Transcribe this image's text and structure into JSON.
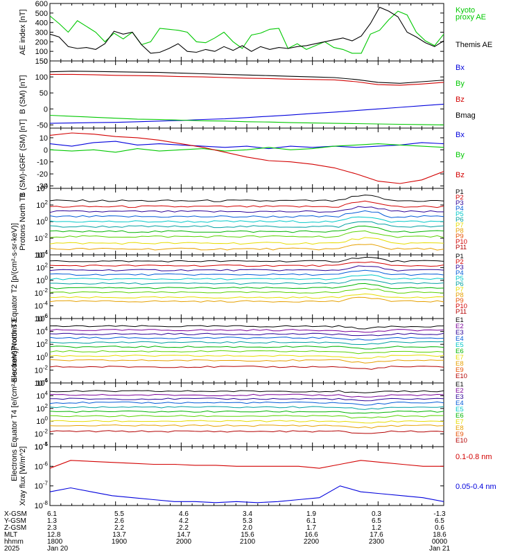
{
  "colors": {
    "black": "#000000",
    "green": "#00c800",
    "red": "#d20000",
    "blue": "#0000dc",
    "purple": "#7a0099",
    "darkblue": "#2a0096",
    "p4": "#005ad7",
    "teal": "#00a0a0",
    "cyan": "#00c8c8",
    "g1": "#00b400",
    "g2": "#5ad200",
    "yellow": "#e6dc00",
    "orange": "#e6a000",
    "orangered": "#e65000",
    "darkred": "#b40000"
  },
  "chart_data": [
    {
      "type": "line",
      "ylabel": "AE index [nT]",
      "ylim": [
        0,
        600
      ],
      "yticks": [
        "0",
        "100",
        "200",
        "300",
        "400",
        "500",
        "600"
      ],
      "series": [
        {
          "name": "Kyoto proxy AE",
          "color": "green",
          "y": [
            470,
            390,
            300,
            420,
            360,
            300,
            200,
            290,
            230,
            300,
            170,
            200,
            340,
            330,
            320,
            300,
            200,
            190,
            240,
            300,
            200,
            130,
            270,
            290,
            330,
            340,
            130,
            180,
            120,
            160,
            200,
            140,
            120,
            80,
            80,
            280,
            320,
            430,
            520,
            480,
            300,
            210,
            160,
            280
          ]
        },
        {
          "name": "Themis AE",
          "color": "black",
          "y": [
            280,
            250,
            150,
            130,
            140,
            120,
            180,
            310,
            280,
            300,
            170,
            80,
            90,
            130,
            180,
            100,
            90,
            120,
            100,
            150,
            110,
            160,
            100,
            150,
            120,
            140,
            130,
            150,
            160,
            180,
            200,
            220,
            240,
            210,
            260,
            390,
            560,
            520,
            460,
            300,
            250,
            190,
            150,
            210
          ]
        }
      ],
      "label_lines": [
        [
          {
            "text": "Kyoto",
            "color": "green"
          }
        ],
        [
          {
            "text": "proxy AE",
            "color": "green"
          }
        ],
        [
          {
            "text": "Themis AE",
            "color": "black"
          }
        ]
      ]
    },
    {
      "type": "line",
      "ylabel": "B (SM) [nT]",
      "ylim": [
        -60,
        150
      ],
      "yticks": [
        "-50",
        "0",
        "50",
        "100",
        "150"
      ],
      "series": [
        {
          "name": "Bx",
          "color": "blue",
          "y": [
            -45,
            -44,
            -43,
            -42,
            -40,
            -38,
            -36,
            -33,
            -31,
            -27,
            -23,
            -19,
            -14,
            -10,
            -5,
            0,
            5,
            10,
            15
          ]
        },
        {
          "name": "By",
          "color": "green",
          "y": [
            -20,
            -23,
            -26,
            -29,
            -32,
            -33,
            -35,
            -37,
            -38,
            -40,
            -41,
            -43,
            -44,
            -45,
            -46,
            -47,
            -48,
            -49,
            -50
          ]
        },
        {
          "name": "Bz",
          "color": "red",
          "y": [
            108,
            108,
            107,
            105,
            104,
            103,
            101,
            100,
            98,
            96,
            95,
            93,
            92,
            91,
            85,
            76,
            74,
            78,
            83
          ]
        },
        {
          "name": "Bmag",
          "color": "black",
          "y": [
            116,
            118,
            117,
            116,
            115,
            114,
            112,
            110,
            108,
            106,
            104,
            102,
            100,
            98,
            92,
            83,
            80,
            85,
            90
          ]
        }
      ],
      "label_lines": [
        [
          {
            "text": "Bx",
            "color": "blue"
          }
        ],
        [
          {
            "text": "By",
            "color": "green"
          }
        ],
        [
          {
            "text": "Bz",
            "color": "red"
          }
        ],
        [
          {
            "text": "Bmag",
            "color": "black"
          }
        ]
      ]
    },
    {
      "type": "line",
      "ylabel": "B (SM)-IGRF (SM) [nT]",
      "ylim": [
        -32,
        18
      ],
      "yticks": [
        "-30",
        "-20",
        "-10",
        "0",
        "10"
      ],
      "series": [
        {
          "name": "Bx",
          "color": "blue",
          "y": [
            5,
            3,
            6,
            7,
            4,
            5,
            4,
            3,
            2,
            3,
            1,
            3,
            2,
            3,
            2,
            3,
            4,
            6,
            5
          ]
        },
        {
          "name": "By",
          "color": "green",
          "y": [
            0,
            -1,
            0,
            -2,
            1,
            -1,
            0,
            1,
            -1,
            0,
            2,
            0,
            1,
            3,
            4,
            5,
            4,
            3,
            2
          ]
        },
        {
          "name": "Bz",
          "color": "red",
          "y": [
            12,
            14,
            13,
            11,
            10,
            8,
            5,
            2,
            -2,
            -6,
            -9,
            -10,
            -12,
            -15,
            -20,
            -26,
            -28,
            -25,
            -18
          ]
        }
      ],
      "label_lines": [
        [
          {
            "text": "Bx",
            "color": "blue"
          }
        ],
        [
          {
            "text": "By",
            "color": "green"
          }
        ],
        [
          {
            "text": "Bz",
            "color": "red"
          }
        ]
      ]
    },
    {
      "type": "line",
      "ylabel": "Protons North T1",
      "log_scale": true,
      "ylim_exp": [
        -4,
        4
      ],
      "yticks": [
        "10^-4",
        "10^-2",
        "10^0",
        "10^2",
        "10^4"
      ],
      "levels_exp": [
        2.5,
        1.8,
        1.2,
        0.6,
        0.0,
        -0.6,
        -1.2,
        -1.8,
        -2.6,
        -3.3
      ],
      "channel_colors": [
        "black",
        "red",
        "darkblue",
        "p4",
        "cyan",
        "teal",
        "g1",
        "g2",
        "yellow",
        "orange"
      ],
      "label_lines": [
        [
          {
            "text": "P1",
            "color": "black"
          }
        ],
        [
          {
            "text": "P2",
            "color": "red"
          }
        ],
        [
          {
            "text": "P3",
            "color": "darkblue"
          }
        ],
        [
          {
            "text": "P4",
            "color": "p4"
          }
        ],
        [
          {
            "text": "P5",
            "color": "cyan"
          }
        ],
        [
          {
            "text": "P6",
            "color": "teal"
          }
        ],
        [
          {
            "text": "P7",
            "color": "yellow"
          }
        ],
        [
          {
            "text": "P8",
            "color": "orange"
          }
        ],
        [
          {
            "text": "P9",
            "color": "orangered"
          }
        ],
        [
          {
            "text": "P10",
            "color": "red"
          }
        ],
        [
          {
            "text": "P11",
            "color": "darkred"
          }
        ]
      ]
    },
    {
      "type": "line",
      "ylabel": "Protons Equator T2 [p/(cm²-s-sr-keV)]",
      "log_scale": true,
      "ylim_exp": [
        -6,
        4
      ],
      "yticks": [
        "10^-6",
        "10^-4",
        "10^-2",
        "10^0",
        "10^2",
        "10^4"
      ],
      "levels_exp": [
        3.0,
        2.3,
        1.6,
        0.9,
        0.2,
        -0.5,
        -1.2,
        -1.9,
        -2.7,
        -3.3
      ],
      "channel_colors": [
        "black",
        "red",
        "darkblue",
        "p4",
        "cyan",
        "teal",
        "g1",
        "g2",
        "yellow",
        "orange"
      ],
      "label_lines": [
        [
          {
            "text": "P1",
            "color": "black"
          }
        ],
        [
          {
            "text": "P2",
            "color": "red"
          }
        ],
        [
          {
            "text": "P3",
            "color": "darkblue"
          }
        ],
        [
          {
            "text": "P4",
            "color": "p4"
          }
        ],
        [
          {
            "text": "P5",
            "color": "cyan"
          }
        ],
        [
          {
            "text": "P6",
            "color": "teal"
          }
        ],
        [
          {
            "text": "P7",
            "color": "yellow"
          }
        ],
        [
          {
            "text": "P8",
            "color": "orange"
          }
        ],
        [
          {
            "text": "P9",
            "color": "orangered"
          }
        ],
        [
          {
            "text": "P10",
            "color": "red"
          }
        ],
        [
          {
            "text": "P11",
            "color": "darkred"
          }
        ]
      ]
    },
    {
      "type": "line",
      "ylabel": "Electrons North T3",
      "log_scale": true,
      "ylim_exp": [
        -4,
        6
      ],
      "yticks": [
        "10^-4",
        "10^-2",
        "10^0",
        "10^2",
        "10^4",
        "10^6"
      ],
      "levels_exp": [
        4.8,
        4.2,
        3.6,
        3.0,
        2.3,
        1.6,
        0.9,
        0.2,
        -0.5,
        -1.5
      ],
      "channel_colors": [
        "black",
        "purple",
        "darkblue",
        "p4",
        "teal",
        "g1",
        "g2",
        "yellow",
        "orange",
        "darkred"
      ],
      "label_lines": [
        [
          {
            "text": "E1",
            "color": "black"
          }
        ],
        [
          {
            "text": "E2",
            "color": "purple"
          }
        ],
        [
          {
            "text": "E3",
            "color": "darkblue"
          }
        ],
        [
          {
            "text": "E4",
            "color": "p4"
          }
        ],
        [
          {
            "text": "E5",
            "color": "cyan"
          }
        ],
        [
          {
            "text": "E6",
            "color": "g1"
          }
        ],
        [
          {
            "text": "E7",
            "color": "yellow"
          }
        ],
        [
          {
            "text": "E8",
            "color": "orange"
          }
        ],
        [
          {
            "text": "E9",
            "color": "orangered"
          }
        ],
        [
          {
            "text": "E10",
            "color": "darkred"
          }
        ]
      ]
    },
    {
      "type": "line",
      "ylabel": "Electrons Equator T4 [e/(cm²-s-sr-keV)]",
      "log_scale": true,
      "ylim_exp": [
        -4,
        6
      ],
      "yticks": [
        "10^-4",
        "10^-2",
        "10^0",
        "10^2",
        "10^4",
        "10^6"
      ],
      "levels_exp": [
        4.7,
        4.1,
        3.5,
        2.9,
        2.2,
        1.5,
        0.8,
        0.0,
        -0.7,
        -1.6
      ],
      "channel_colors": [
        "black",
        "purple",
        "darkblue",
        "p4",
        "teal",
        "g1",
        "g2",
        "yellow",
        "orange",
        "darkred"
      ],
      "label_lines": [
        [
          {
            "text": "E1",
            "color": "black"
          }
        ],
        [
          {
            "text": "E2",
            "color": "purple"
          }
        ],
        [
          {
            "text": "E3",
            "color": "darkblue"
          }
        ],
        [
          {
            "text": "E4",
            "color": "p4"
          }
        ],
        [
          {
            "text": "E5",
            "color": "cyan"
          }
        ],
        [
          {
            "text": "E6",
            "color": "g1"
          }
        ],
        [
          {
            "text": "E7",
            "color": "yellow"
          }
        ],
        [
          {
            "text": "E8",
            "color": "orange"
          }
        ],
        [
          {
            "text": "E9",
            "color": "orangered"
          }
        ],
        [
          {
            "text": "E10",
            "color": "darkred"
          }
        ]
      ]
    },
    {
      "type": "line",
      "ylabel": "Xray flux [W/m^2]",
      "log_scale": true,
      "ylim_exp": [
        -8,
        -5
      ],
      "yticks": [
        "10^-8",
        "10^-7",
        "10^-6",
        "10^-5"
      ],
      "series": [
        {
          "name": "0.1-0.8 nm",
          "color": "red",
          "y_exp": [
            -6.1,
            -5.7,
            -5.75,
            -5.8,
            -5.85,
            -5.9,
            -5.9,
            -5.95,
            -5.95,
            -6.0,
            -6.0,
            -6.0,
            -6.0,
            -6.1,
            -5.9,
            -5.7,
            -5.8,
            -5.9,
            -6.0,
            -6.0
          ]
        },
        {
          "name": "0.05-0.4 nm",
          "color": "blue",
          "y_exp": [
            -7.3,
            -7.1,
            -7.3,
            -7.5,
            -7.6,
            -7.7,
            -7.8,
            -7.8,
            -7.85,
            -7.8,
            -7.85,
            -7.8,
            -7.7,
            -7.6,
            -7.0,
            -7.3,
            -7.4,
            -7.5,
            -7.6,
            -7.8
          ]
        }
      ],
      "label_lines": [
        [
          {
            "text": "0.1-0.8 nm",
            "color": "red"
          }
        ],
        [
          {
            "text": "0.05-0.4 nm",
            "color": "blue"
          }
        ]
      ]
    }
  ],
  "footer": {
    "row_labels": [
      "X-GSM",
      "Y-GSM",
      "Z-GSM",
      "MLT",
      "hhmm",
      "2025"
    ],
    "columns": [
      [
        "6.1",
        "1.3",
        "2.3",
        "12.8",
        "1800",
        "Jan 20"
      ],
      [
        "5.5",
        "2.6",
        "2.2",
        "13.7",
        "1900",
        ""
      ],
      [
        "4.6",
        "4.2",
        "2.2",
        "14.7",
        "2000",
        ""
      ],
      [
        "3.4",
        "5.3",
        "2.0",
        "15.6",
        "2100",
        ""
      ],
      [
        "1.9",
        "6.1",
        "1.7",
        "16.6",
        "2200",
        ""
      ],
      [
        "0.3",
        "6.5",
        "1.2",
        "17.6",
        "2300",
        ""
      ],
      [
        "-1.3",
        "6.5",
        "0.6",
        "18.6",
        "0000",
        "Jan 21"
      ]
    ]
  }
}
